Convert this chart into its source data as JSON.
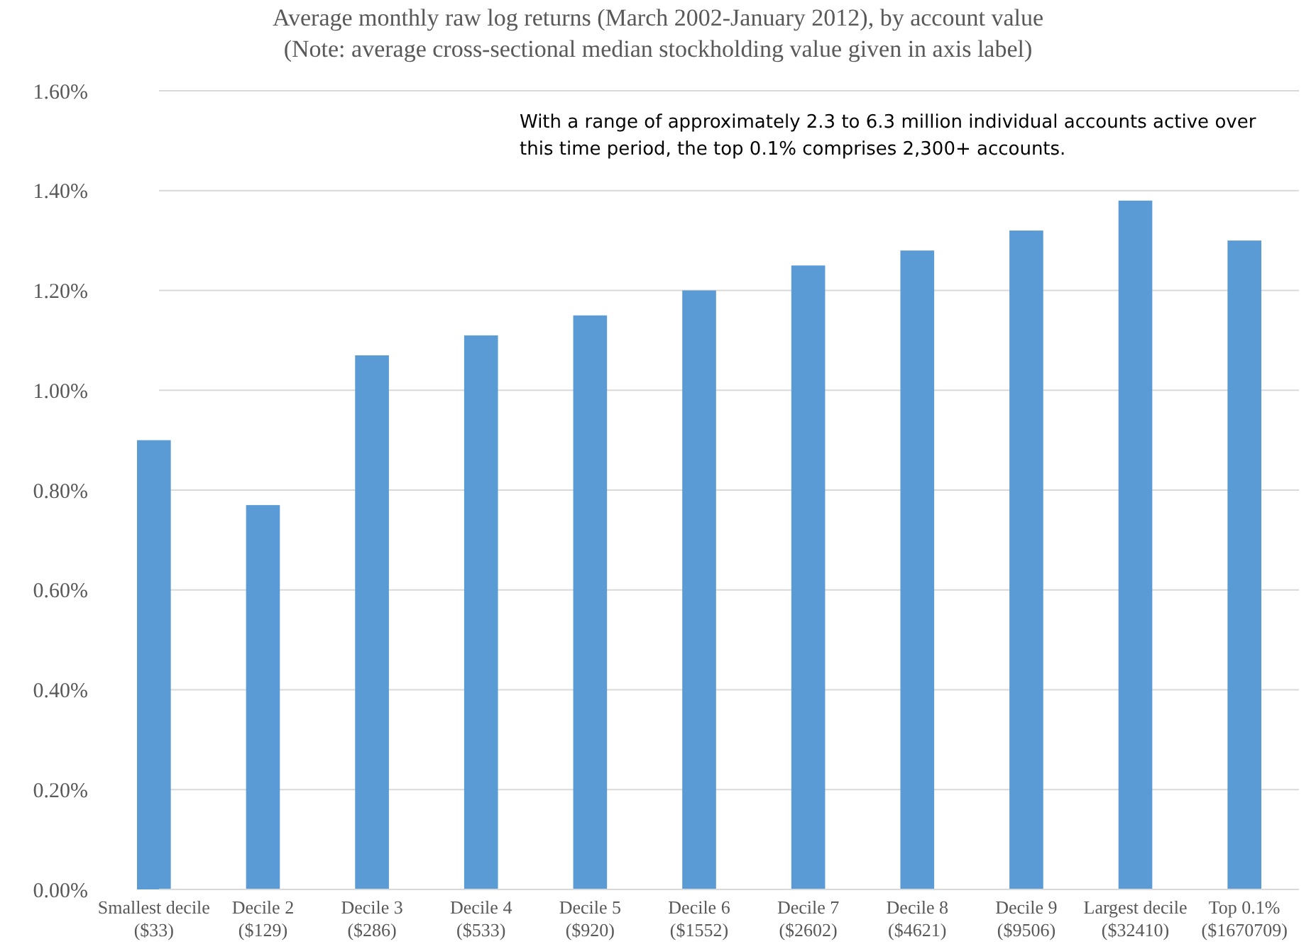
{
  "chart_data": {
    "type": "bar",
    "title": "Average monthly raw log returns (March 2002-January 2012), by account value",
    "subtitle": "(Note: average cross-sectional median stockholding value given in axis label)",
    "categories": [
      "Smallest decile ($33)",
      "Decile 2 ($129)",
      "Decile 3 ($286)",
      "Decile 4 ($533)",
      "Decile 5 ($920)",
      "Decile 6 ($1552)",
      "Decile 7 ($2602)",
      "Decile 8 ($4621)",
      "Decile 9 ($9506)",
      "Largest decile ($32410)",
      "Top 0.1% ($1670709)"
    ],
    "values": [
      0.9,
      0.77,
      1.07,
      1.11,
      1.15,
      1.2,
      1.25,
      1.28,
      1.32,
      1.38,
      1.3
    ],
    "color": "#5b9bd5",
    "ylim": [
      0,
      1.6
    ],
    "yticks": [
      {
        "value": 0,
        "label": "0.00%"
      },
      {
        "value": 0.2,
        "label": "0.20%"
      },
      {
        "value": 0.4,
        "label": "0.40%"
      },
      {
        "value": 0.6,
        "label": "0.60%"
      },
      {
        "value": 0.8,
        "label": "0.80%"
      },
      {
        "value": 1,
        "label": "1.00%"
      },
      {
        "value": 1.2,
        "label": "1.20%"
      },
      {
        "value": 1.4,
        "label": "1.40%"
      },
      {
        "value": 1.6,
        "label": "1.60%"
      }
    ],
    "grid": "y",
    "annotations": [
      "With a range of approximately 2.3 to 6.3 million individual accounts active over this time period, the top 0.1% comprises 2,300+ accounts."
    ]
  }
}
